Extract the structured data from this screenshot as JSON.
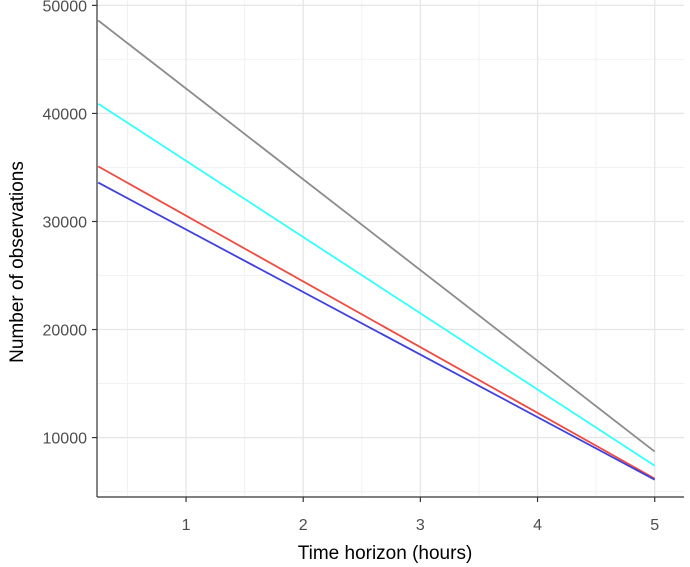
{
  "chart_data": {
    "type": "line",
    "title": "",
    "xlabel": "Time horizon (hours)",
    "ylabel": "Number of observations",
    "xlim": [
      0.24,
      5.25
    ],
    "ylim": [
      4500,
      50500
    ],
    "xticks": [
      1,
      2,
      3,
      4,
      5
    ],
    "yticks": [
      10000,
      20000,
      30000,
      40000,
      50000
    ],
    "grid": true,
    "legend": "none",
    "series": [
      {
        "color": "#8c8c8c",
        "x": [
          0.25,
          5
        ],
        "y": [
          48600,
          8700
        ]
      },
      {
        "color": "#33ffff",
        "x": [
          0.25,
          5
        ],
        "y": [
          40900,
          7400
        ]
      },
      {
        "color": "#ee4b42",
        "x": [
          0.25,
          5
        ],
        "y": [
          35100,
          6200
        ]
      },
      {
        "color": "#4040dd",
        "x": [
          0.25,
          5
        ],
        "y": [
          33600,
          6100
        ]
      }
    ]
  }
}
